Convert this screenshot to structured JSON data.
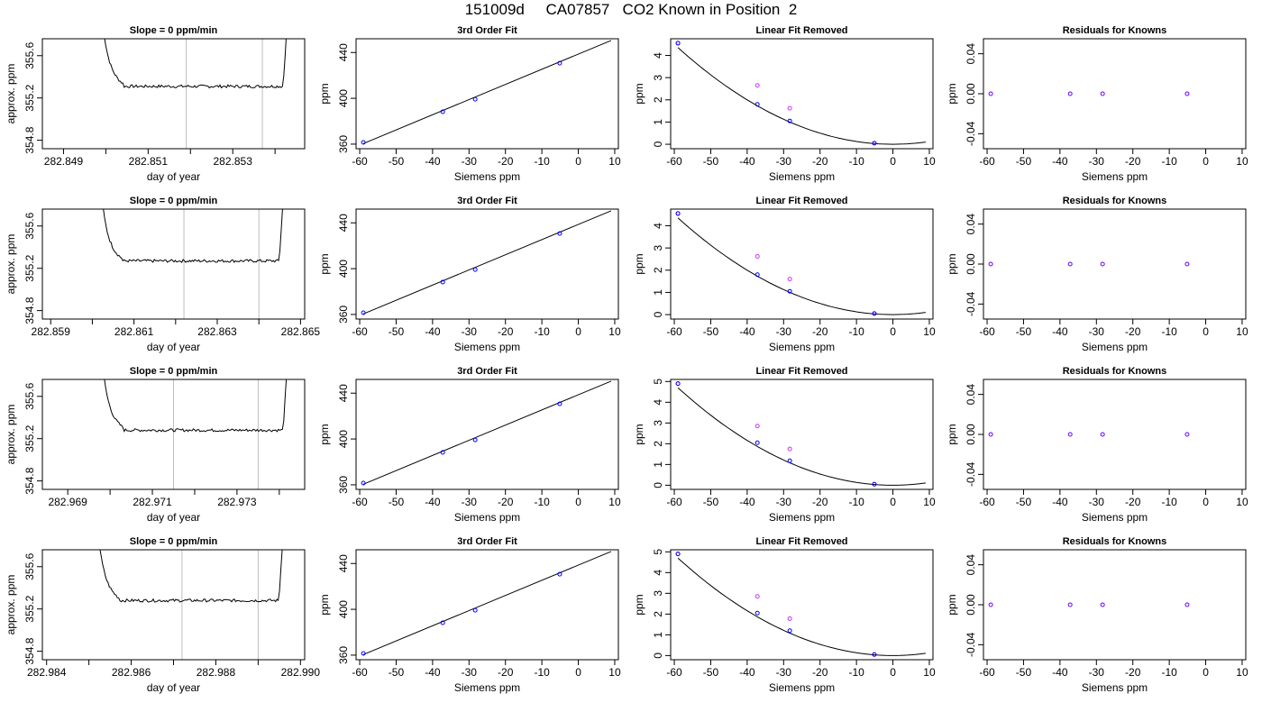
{
  "figure": {
    "title": "151009d     CA07857   CO2 Known in Position  2"
  },
  "colors": {
    "series_line": "#000000",
    "measured_points": "#cc33ff",
    "fitted_points": "#0000ff",
    "marker_lines": "#bebebe",
    "residual_points": "#6600ff"
  },
  "chart_data": [
    {
      "row": 1,
      "type": "line",
      "title": "Slope =  0  ppm/min",
      "xlabel": "day of year",
      "ylabel": "approx. ppm",
      "xlim": [
        282.8485,
        282.8547
      ],
      "ylim": [
        354.72,
        355.76
      ],
      "xticks": [
        "282.849",
        "282.851",
        "282.853"
      ],
      "xtick_values": [
        282.849,
        282.851,
        282.853
      ],
      "yticks": [
        "354.8",
        "355.2",
        "355.6"
      ],
      "ytick_values": [
        354.8,
        355.2,
        355.6
      ],
      "minor_xticks": [
        282.85,
        282.852,
        282.854
      ],
      "vlines": [
        282.8519,
        282.8537
      ],
      "x_start": 282.8499,
      "x_end": 282.8543,
      "baseline": 355.31
    },
    {
      "row": 1,
      "type": "scatter",
      "title": "3rd Order Fit",
      "xlabel": "Siemens ppm",
      "ylabel": "ppm",
      "xlim": [
        -61,
        11
      ],
      "ylim": [
        356,
        452
      ],
      "xticks": [
        "-60",
        "-50",
        "-40",
        "-30",
        "-20",
        "-10",
        "0",
        "10"
      ],
      "xtick_values": [
        -60,
        -50,
        -40,
        -30,
        -20,
        -10,
        0,
        10
      ],
      "yticks": [
        "360",
        "400",
        "440"
      ],
      "ytick_values": [
        360,
        400,
        440
      ],
      "points": [
        [
          -59,
          361.5
        ],
        [
          -37.2,
          388.3
        ],
        [
          -28.3,
          399.2
        ],
        [
          -5.1,
          430.7
        ]
      ],
      "fit_line": [
        [
          -59,
          360.5
        ],
        [
          9,
          450.5
        ]
      ]
    },
    {
      "row": 1,
      "type": "scatter",
      "title": "Linear Fit Removed",
      "xlabel": "Siemens ppm",
      "ylabel": "ppm",
      "xlim": [
        -61,
        11
      ],
      "ylim": [
        -0.2,
        4.75
      ],
      "xticks": [
        "-60",
        "-50",
        "-40",
        "-30",
        "-20",
        "-10",
        "0",
        "10"
      ],
      "xtick_values": [
        -60,
        -50,
        -40,
        -30,
        -20,
        -10,
        0,
        10
      ],
      "yticks": [
        "0",
        "1",
        "2",
        "3",
        "4"
      ],
      "ytick_values": [
        0,
        1,
        2,
        3,
        4
      ],
      "measured": [
        [
          -59,
          4.55
        ],
        [
          -37.2,
          2.65
        ],
        [
          -28.3,
          1.62
        ],
        [
          -5.1,
          0.05
        ]
      ],
      "fitted": [
        [
          -59,
          4.55
        ],
        [
          -37.2,
          1.8
        ],
        [
          -28.3,
          1.05
        ],
        [
          -5.1,
          0.05
        ]
      ],
      "curve": {
        "a": 0.00125,
        "b": 0.0,
        "c": 0.0
      }
    },
    {
      "row": 1,
      "type": "scatter",
      "title": "Residuals for Knowns",
      "xlabel": "Siemens ppm",
      "ylabel": "ppm",
      "xlim": [
        -61,
        11
      ],
      "ylim": [
        -0.055,
        0.055
      ],
      "xticks": [
        "-60",
        "-50",
        "-40",
        "-30",
        "-20",
        "-10",
        "0",
        "10"
      ],
      "xtick_values": [
        -60,
        -50,
        -40,
        -30,
        -20,
        -10,
        0,
        10
      ],
      "yticks": [
        "-0.04",
        "0.00",
        "0.04"
      ],
      "ytick_values": [
        -0.04,
        0,
        0.04
      ],
      "points": [
        [
          -59,
          0
        ],
        [
          -37.2,
          0
        ],
        [
          -28.3,
          0
        ],
        [
          -5.1,
          0
        ]
      ]
    },
    {
      "row": 2,
      "type": "line",
      "title": "Slope =  0  ppm/min",
      "xlabel": "day of year",
      "ylabel": "approx. ppm",
      "xlim": [
        282.8588,
        282.8651
      ],
      "ylim": [
        354.72,
        355.76
      ],
      "xticks": [
        "282.859",
        "282.861",
        "282.863",
        "282.865"
      ],
      "xtick_values": [
        282.859,
        282.861,
        282.863,
        282.865
      ],
      "yticks": [
        "354.8",
        "355.2",
        "355.6"
      ],
      "ytick_values": [
        354.8,
        355.2,
        355.6
      ],
      "minor_xticks": [
        282.86,
        282.862,
        282.864
      ],
      "vlines": [
        282.8622,
        282.864
      ],
      "x_start": 282.8602,
      "x_end": 282.8646,
      "baseline": 355.27
    },
    {
      "row": 2,
      "type": "scatter",
      "title": "3rd Order Fit",
      "xlabel": "Siemens ppm",
      "ylabel": "ppm",
      "xlim": [
        -61,
        11
      ],
      "ylim": [
        356,
        452
      ],
      "xticks": [
        "-60",
        "-50",
        "-40",
        "-30",
        "-20",
        "-10",
        "0",
        "10"
      ],
      "xtick_values": [
        -60,
        -50,
        -40,
        -30,
        -20,
        -10,
        0,
        10
      ],
      "yticks": [
        "360",
        "400",
        "440"
      ],
      "ytick_values": [
        360,
        400,
        440
      ],
      "points": [
        [
          -59,
          361.5
        ],
        [
          -37.2,
          388.3
        ],
        [
          -28.3,
          399.2
        ],
        [
          -5.1,
          430.7
        ]
      ],
      "fit_line": [
        [
          -59,
          360.5
        ],
        [
          9,
          450.5
        ]
      ]
    },
    {
      "row": 2,
      "type": "scatter",
      "title": "Linear Fit Removed",
      "xlabel": "Siemens ppm",
      "ylabel": "ppm",
      "xlim": [
        -61,
        11
      ],
      "ylim": [
        -0.2,
        4.75
      ],
      "xticks": [
        "-60",
        "-50",
        "-40",
        "-30",
        "-20",
        "-10",
        "0",
        "10"
      ],
      "xtick_values": [
        -60,
        -50,
        -40,
        -30,
        -20,
        -10,
        0,
        10
      ],
      "yticks": [
        "0",
        "1",
        "2",
        "3",
        "4"
      ],
      "ytick_values": [
        0,
        1,
        2,
        3,
        4
      ],
      "measured": [
        [
          -59,
          4.55
        ],
        [
          -37.2,
          2.62
        ],
        [
          -28.3,
          1.6
        ],
        [
          -5.1,
          0.05
        ]
      ],
      "fitted": [
        [
          -59,
          4.55
        ],
        [
          -37.2,
          1.8
        ],
        [
          -28.3,
          1.05
        ],
        [
          -5.1,
          0.05
        ]
      ],
      "curve": {
        "a": 0.00125,
        "b": 0.0,
        "c": 0.0
      }
    },
    {
      "row": 2,
      "type": "scatter",
      "title": "Residuals for Knowns",
      "xlabel": "Siemens ppm",
      "ylabel": "ppm",
      "xlim": [
        -61,
        11
      ],
      "ylim": [
        -0.055,
        0.055
      ],
      "xticks": [
        "-60",
        "-50",
        "-40",
        "-30",
        "-20",
        "-10",
        "0",
        "10"
      ],
      "xtick_values": [
        -60,
        -50,
        -40,
        -30,
        -20,
        -10,
        0,
        10
      ],
      "yticks": [
        "-0.04",
        "0.00",
        "0.04"
      ],
      "ytick_values": [
        -0.04,
        0,
        0.04
      ],
      "points": [
        [
          -59,
          0
        ],
        [
          -37.2,
          0
        ],
        [
          -28.3,
          0
        ],
        [
          -5.1,
          0
        ]
      ]
    },
    {
      "row": 3,
      "type": "line",
      "title": "Slope =  0  ppm/min",
      "xlabel": "day of year",
      "ylabel": "approx. ppm",
      "xlim": [
        282.9684,
        282.9746
      ],
      "ylim": [
        354.72,
        355.76
      ],
      "xticks": [
        "282.969",
        "282.971",
        "282.973"
      ],
      "xtick_values": [
        282.969,
        282.971,
        282.973
      ],
      "yticks": [
        "354.8",
        "355.2",
        "355.6"
      ],
      "ytick_values": [
        354.8,
        355.2,
        355.6
      ],
      "minor_xticks": [
        282.97,
        282.972,
        282.974
      ],
      "vlines": [
        282.9715,
        282.9735
      ],
      "x_start": 282.9698,
      "x_end": 282.9742,
      "baseline": 355.28
    },
    {
      "row": 3,
      "type": "scatter",
      "title": "3rd Order Fit",
      "xlabel": "Siemens ppm",
      "ylabel": "ppm",
      "xlim": [
        -61,
        11
      ],
      "ylim": [
        356,
        452
      ],
      "xticks": [
        "-60",
        "-50",
        "-40",
        "-30",
        "-20",
        "-10",
        "0",
        "10"
      ],
      "xtick_values": [
        -60,
        -50,
        -40,
        -30,
        -20,
        -10,
        0,
        10
      ],
      "yticks": [
        "360",
        "400",
        "440"
      ],
      "ytick_values": [
        360,
        400,
        440
      ],
      "points": [
        [
          -59,
          361.5
        ],
        [
          -37.2,
          388.3
        ],
        [
          -28.3,
          399.2
        ],
        [
          -5.1,
          430.7
        ]
      ],
      "fit_line": [
        [
          -59,
          360.5
        ],
        [
          9,
          450.5
        ]
      ]
    },
    {
      "row": 3,
      "type": "scatter",
      "title": "Linear Fit Removed",
      "xlabel": "Siemens ppm",
      "ylabel": "ppm",
      "xlim": [
        -61,
        11
      ],
      "ylim": [
        -0.2,
        5.1
      ],
      "xticks": [
        "-60",
        "-50",
        "-40",
        "-30",
        "-20",
        "-10",
        "0",
        "10"
      ],
      "xtick_values": [
        -60,
        -50,
        -40,
        -30,
        -20,
        -10,
        0,
        10
      ],
      "yticks": [
        "0",
        "1",
        "2",
        "3",
        "4",
        "5"
      ],
      "ytick_values": [
        0,
        1,
        2,
        3,
        4,
        5
      ],
      "measured": [
        [
          -59,
          4.9
        ],
        [
          -37.2,
          2.85
        ],
        [
          -28.3,
          1.75
        ],
        [
          -5.1,
          0.05
        ]
      ],
      "fitted": [
        [
          -59,
          4.9
        ],
        [
          -37.2,
          2.05
        ],
        [
          -28.3,
          1.18
        ],
        [
          -5.1,
          0.05
        ]
      ],
      "curve": {
        "a": 0.00135,
        "b": 0.0,
        "c": 0.0
      }
    },
    {
      "row": 3,
      "type": "scatter",
      "title": "Residuals for Knowns",
      "xlabel": "Siemens ppm",
      "ylabel": "ppm",
      "xlim": [
        -61,
        11
      ],
      "ylim": [
        -0.055,
        0.055
      ],
      "xticks": [
        "-60",
        "-50",
        "-40",
        "-30",
        "-20",
        "-10",
        "0",
        "10"
      ],
      "xtick_values": [
        -60,
        -50,
        -40,
        -30,
        -20,
        -10,
        0,
        10
      ],
      "yticks": [
        "-0.04",
        "0.00",
        "0.04"
      ],
      "ytick_values": [
        -0.04,
        0,
        0.04
      ],
      "points": [
        [
          -59,
          0
        ],
        [
          -37.2,
          0
        ],
        [
          -28.3,
          0
        ],
        [
          -5.1,
          0
        ]
      ]
    },
    {
      "row": 4,
      "type": "line",
      "title": "Slope =  0  ppm/min",
      "xlabel": "day of year",
      "ylabel": "approx. ppm",
      "xlim": [
        282.9839,
        282.9901
      ],
      "ylim": [
        354.72,
        355.76
      ],
      "xticks": [
        "282.984",
        "282.986",
        "282.988",
        "282.990"
      ],
      "xtick_values": [
        282.984,
        282.986,
        282.988,
        282.99
      ],
      "yticks": [
        "354.8",
        "355.2",
        "355.6"
      ],
      "ytick_values": [
        354.8,
        355.2,
        355.6
      ],
      "minor_xticks": [
        282.985,
        282.987,
        282.989
      ],
      "vlines": [
        282.9872,
        282.989
      ],
      "x_start": 282.9852,
      "x_end": 282.9896,
      "baseline": 355.28
    },
    {
      "row": 4,
      "type": "scatter",
      "title": "3rd Order Fit",
      "xlabel": "Siemens ppm",
      "ylabel": "ppm",
      "xlim": [
        -61,
        11
      ],
      "ylim": [
        356,
        452
      ],
      "xticks": [
        "-60",
        "-50",
        "-40",
        "-30",
        "-20",
        "-10",
        "0",
        "10"
      ],
      "xtick_values": [
        -60,
        -50,
        -40,
        -30,
        -20,
        -10,
        0,
        10
      ],
      "yticks": [
        "360",
        "400",
        "440"
      ],
      "ytick_values": [
        360,
        400,
        440
      ],
      "points": [
        [
          -59,
          361.5
        ],
        [
          -37.2,
          388.3
        ],
        [
          -28.3,
          399.2
        ],
        [
          -5.1,
          430.7
        ]
      ],
      "fit_line": [
        [
          -59,
          360.5
        ],
        [
          9,
          450.5
        ]
      ]
    },
    {
      "row": 4,
      "type": "scatter",
      "title": "Linear Fit Removed",
      "xlabel": "Siemens ppm",
      "ylabel": "ppm",
      "xlim": [
        -61,
        11
      ],
      "ylim": [
        -0.2,
        5.1
      ],
      "xticks": [
        "-60",
        "-50",
        "-40",
        "-30",
        "-20",
        "-10",
        "0",
        "10"
      ],
      "xtick_values": [
        -60,
        -50,
        -40,
        -30,
        -20,
        -10,
        0,
        10
      ],
      "yticks": [
        "0",
        "1",
        "2",
        "3",
        "4",
        "5"
      ],
      "ytick_values": [
        0,
        1,
        2,
        3,
        4,
        5
      ],
      "measured": [
        [
          -59,
          4.9
        ],
        [
          -37.2,
          2.85
        ],
        [
          -28.3,
          1.78
        ],
        [
          -5.1,
          0.05
        ]
      ],
      "fitted": [
        [
          -59,
          4.9
        ],
        [
          -37.2,
          2.05
        ],
        [
          -28.3,
          1.2
        ],
        [
          -5.1,
          0.05
        ]
      ],
      "curve": {
        "a": 0.00135,
        "b": 0.0,
        "c": 0.0
      }
    },
    {
      "row": 4,
      "type": "scatter",
      "title": "Residuals for Knowns",
      "xlabel": "Siemens ppm",
      "ylabel": "ppm",
      "xlim": [
        -61,
        11
      ],
      "ylim": [
        -0.055,
        0.055
      ],
      "xticks": [
        "-60",
        "-50",
        "-40",
        "-30",
        "-20",
        "-10",
        "0",
        "10"
      ],
      "xtick_values": [
        -60,
        -50,
        -40,
        -30,
        -20,
        -10,
        0,
        10
      ],
      "yticks": [
        "-0.04",
        "0.00",
        "0.04"
      ],
      "ytick_values": [
        -0.04,
        0,
        0.04
      ],
      "points": [
        [
          -59,
          0
        ],
        [
          -37.2,
          0
        ],
        [
          -28.3,
          0
        ],
        [
          -5.1,
          0
        ]
      ]
    }
  ]
}
